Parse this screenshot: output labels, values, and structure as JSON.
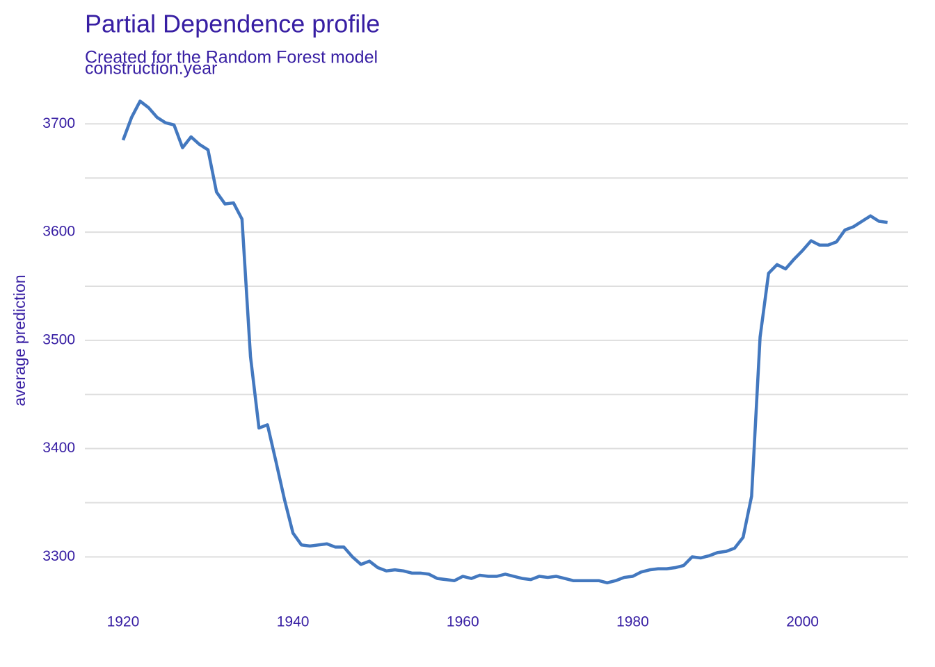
{
  "chart_data": {
    "type": "line",
    "title": "Partial Dependence profile",
    "subtitle": "Created for the Random Forest model",
    "facet_label": "construction.year",
    "y_label": "average prediction",
    "x": [
      1920,
      1921,
      1922,
      1923,
      1924,
      1925,
      1926,
      1927,
      1928,
      1929,
      1930,
      1931,
      1932,
      1933,
      1934,
      1935,
      1936,
      1937,
      1938,
      1939,
      1940,
      1941,
      1942,
      1943,
      1944,
      1945,
      1946,
      1947,
      1948,
      1949,
      1950,
      1951,
      1952,
      1953,
      1954,
      1955,
      1956,
      1957,
      1958,
      1959,
      1960,
      1961,
      1962,
      1963,
      1964,
      1965,
      1966,
      1967,
      1968,
      1969,
      1970,
      1971,
      1972,
      1973,
      1974,
      1975,
      1976,
      1977,
      1978,
      1979,
      1980,
      1981,
      1982,
      1983,
      1984,
      1985,
      1986,
      1987,
      1988,
      1989,
      1990,
      1991,
      1992,
      1993,
      1994,
      1995,
      1996,
      1997,
      1998,
      1999,
      2000,
      2001,
      2002,
      2003,
      2004,
      2005,
      2006,
      2007,
      2008,
      2009,
      2010
    ],
    "series": [
      {
        "color": "#4378bf",
        "values": [
          3685,
          3706,
          3721,
          3715,
          3706,
          3701,
          3699,
          3678,
          3688,
          3681,
          3676,
          3637,
          3626,
          3627,
          3612,
          3485,
          3419,
          3422,
          3388,
          3353,
          3322,
          3311,
          3310,
          3311,
          3312,
          3309,
          3309,
          3300,
          3293,
          3296,
          3290,
          3287,
          3288,
          3287,
          3285,
          3285,
          3284,
          3280,
          3279,
          3278,
          3282,
          3280,
          3283,
          3282,
          3282,
          3284,
          3282,
          3280,
          3279,
          3282,
          3281,
          3282,
          3280,
          3278,
          3278,
          3278,
          3278,
          3276,
          3278,
          3281,
          3282,
          3286,
          3288,
          3289,
          3289,
          3290,
          3292,
          3300,
          3299,
          3301,
          3304,
          3305,
          3308,
          3318,
          3356,
          3503,
          3562,
          3570,
          3566,
          3575,
          3583,
          3592,
          3588,
          3588,
          3591,
          3602,
          3605,
          3610,
          3615,
          3610,
          3609
        ]
      }
    ],
    "xlim": [
      1915.5,
      2012.4
    ],
    "ylim": [
      3256,
      3731
    ],
    "xticks": [
      1920,
      1940,
      1960,
      1980,
      2000
    ],
    "yticks": [
      3300,
      3400,
      3500,
      3600,
      3700
    ],
    "y_minor_gridlines": [
      3350,
      3450,
      3550,
      3650
    ],
    "grid": true,
    "text_color": "#371ea3"
  }
}
